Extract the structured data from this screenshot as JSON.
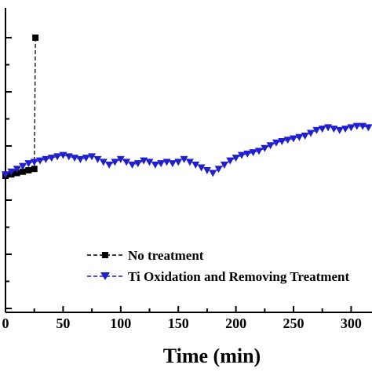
{
  "chart_data": {
    "type": "line",
    "xlabel": "Time (min)",
    "ylabel": "",
    "xlim": [
      0,
      325
    ],
    "x_ticks": [
      0,
      50,
      100,
      150,
      200,
      250,
      300
    ],
    "x_tick_labels": [
      "0",
      "50",
      "100",
      "150",
      "200",
      "250",
      "300"
    ],
    "grid": false,
    "legend_position": "bottom-left",
    "series": [
      {
        "name": "No treatment",
        "marker": "square",
        "line_style": "dashed",
        "color": "#000000",
        "x": [
          0,
          5,
          10,
          15,
          20,
          25,
          26
        ],
        "y": [
          0.0,
          0.1,
          0.2,
          0.3,
          0.4,
          0.5,
          10.0
        ]
      },
      {
        "name": "Ti Oxidation and Removing Treatment",
        "marker": "triangle-down",
        "line_style": "dashed",
        "color": "#1f1fd0",
        "x": [
          0,
          5,
          10,
          15,
          20,
          25,
          30,
          35,
          40,
          45,
          50,
          55,
          60,
          65,
          70,
          75,
          80,
          85,
          90,
          95,
          100,
          105,
          110,
          115,
          120,
          125,
          130,
          135,
          140,
          145,
          150,
          155,
          160,
          165,
          170,
          175,
          180,
          185,
          190,
          195,
          200,
          205,
          210,
          215,
          220,
          225,
          230,
          235,
          240,
          245,
          250,
          255,
          260,
          265,
          270,
          275,
          280,
          285,
          290,
          295,
          300,
          305,
          310,
          315
        ],
        "y": [
          0.1,
          0.3,
          0.5,
          0.7,
          0.9,
          1.0,
          1.1,
          1.2,
          1.3,
          1.4,
          1.5,
          1.4,
          1.3,
          1.2,
          1.3,
          1.4,
          1.2,
          1.0,
          0.8,
          1.0,
          1.2,
          1.0,
          0.8,
          0.9,
          1.1,
          1.0,
          0.8,
          0.9,
          1.0,
          0.9,
          1.0,
          1.2,
          1.0,
          0.8,
          0.6,
          0.4,
          0.2,
          0.5,
          0.8,
          1.1,
          1.3,
          1.5,
          1.6,
          1.7,
          1.8,
          2.0,
          2.2,
          2.4,
          2.5,
          2.6,
          2.7,
          2.8,
          2.9,
          3.1,
          3.3,
          3.4,
          3.5,
          3.4,
          3.3,
          3.4,
          3.5,
          3.6,
          3.6,
          3.5
        ]
      }
    ]
  }
}
